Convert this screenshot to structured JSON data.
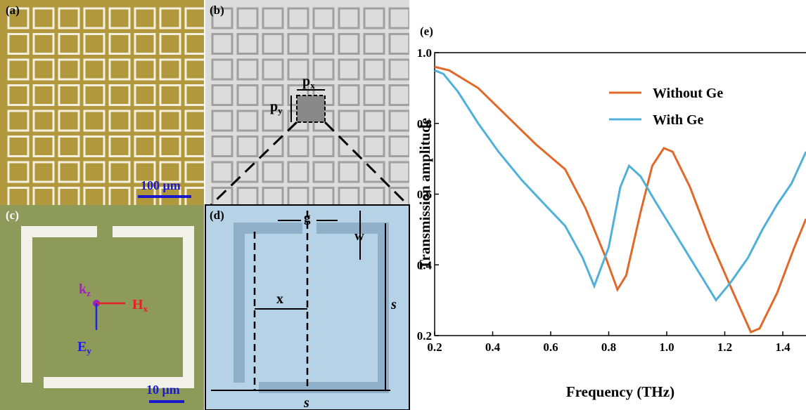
{
  "panels": {
    "a": {
      "label": "(a)",
      "scale": "100 μm"
    },
    "b": {
      "label": "(b)",
      "px": {
        "main": "p",
        "sub": "x"
      },
      "py": {
        "main": "p",
        "sub": "y"
      }
    },
    "c": {
      "label": "(c)",
      "k": {
        "main": "k",
        "sub": "z"
      },
      "h": {
        "main": "H",
        "sub": "x"
      },
      "e": {
        "main": "E",
        "sub": "y"
      },
      "scale": "10 μm"
    },
    "d": {
      "label": "(d)",
      "g": "g",
      "w": "w",
      "x": "x",
      "s_side": "s",
      "s_bottom": "s"
    }
  },
  "chart_data": {
    "type": "line",
    "panel_label": "(e)",
    "x_label": "Frequency (THz)",
    "y_label": "Transmission amplitude",
    "xlim": [
      0.2,
      1.48
    ],
    "ylim": [
      0.2,
      1.0
    ],
    "xticks": [
      0.2,
      0.4,
      0.6,
      0.8,
      {
        "value": 1,
        "label": "1.0"
      },
      1.2,
      1.4
    ],
    "yticks": [
      0.2,
      0.4,
      0.6,
      0.8,
      {
        "value": 1,
        "label": "1.0"
      }
    ],
    "series": [
      {
        "name": "Without Ge",
        "color": "#e0692a",
        "x": [
          0.2,
          0.25,
          0.35,
          0.45,
          0.55,
          0.65,
          0.72,
          0.79,
          0.83,
          0.86,
          0.91,
          0.95,
          0.99,
          1.02,
          1.08,
          1.15,
          1.23,
          1.29,
          1.32,
          1.38,
          1.44,
          1.48
        ],
        "values": [
          0.96,
          0.95,
          0.9,
          0.82,
          0.74,
          0.67,
          0.56,
          0.42,
          0.33,
          0.37,
          0.55,
          0.68,
          0.73,
          0.72,
          0.62,
          0.47,
          0.32,
          0.21,
          0.22,
          0.32,
          0.45,
          0.53
        ]
      },
      {
        "name": "With Ge",
        "color": "#4fb0d8",
        "x": [
          0.2,
          0.23,
          0.28,
          0.35,
          0.42,
          0.5,
          0.58,
          0.65,
          0.71,
          0.75,
          0.8,
          0.84,
          0.87,
          0.91,
          0.96,
          1.02,
          1.08,
          1.14,
          1.17,
          1.22,
          1.28,
          1.33,
          1.38,
          1.43,
          1.48
        ],
        "values": [
          0.95,
          0.94,
          0.89,
          0.8,
          0.72,
          0.64,
          0.57,
          0.51,
          0.42,
          0.34,
          0.45,
          0.62,
          0.68,
          0.65,
          0.58,
          0.5,
          0.42,
          0.34,
          0.3,
          0.35,
          0.42,
          0.5,
          0.57,
          0.63,
          0.72
        ]
      }
    ]
  }
}
